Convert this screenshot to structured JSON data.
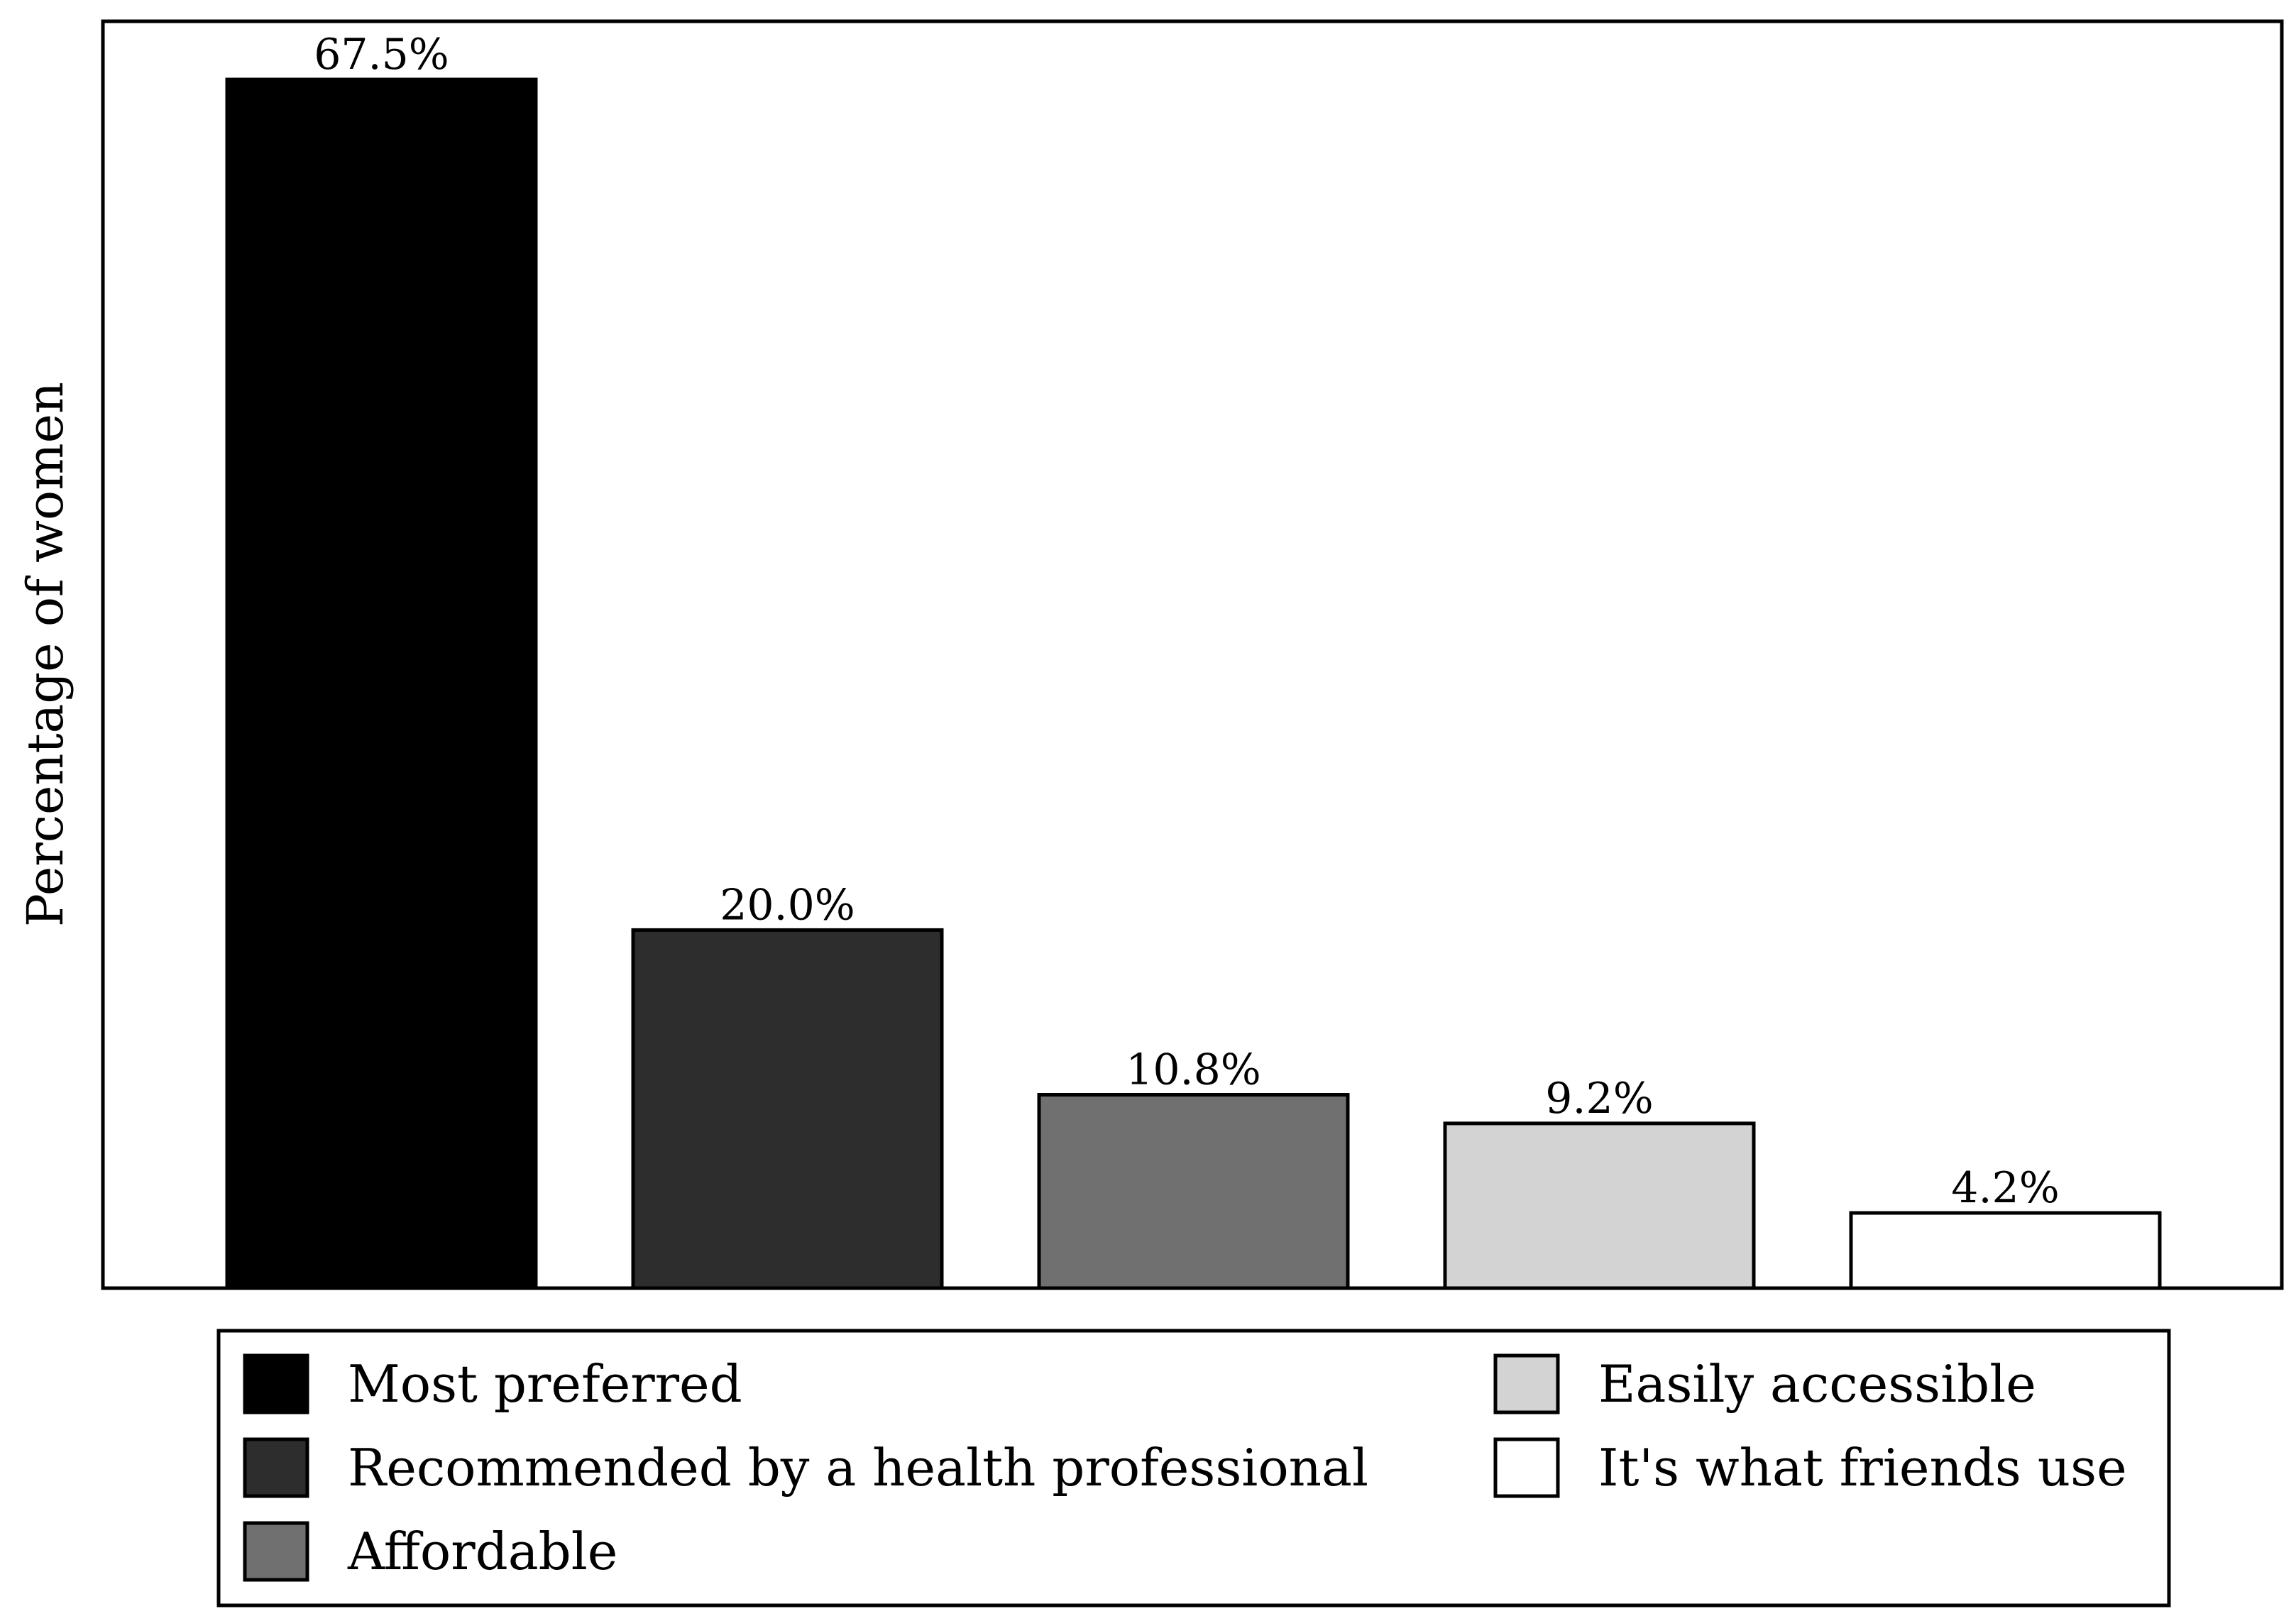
{
  "chart_data": {
    "type": "bar",
    "title": "",
    "xlabel": "",
    "ylabel": "Percentage of women",
    "ylim": [
      0,
      70
    ],
    "grid": false,
    "legend_placement": "bottom",
    "categories": [
      "Most preferred",
      "Recommended by a health professional",
      "Affordable",
      "Easily accessible",
      "It's what friends use"
    ],
    "values": [
      67.5,
      20.0,
      10.8,
      9.2,
      4.2
    ],
    "data_labels": [
      "67.5%",
      "20.0%",
      "10.8%",
      "9.2%",
      "4.2%"
    ],
    "colors": [
      "#000000",
      "#2d2d2d",
      "#707070",
      "#d3d3d3",
      "#ffffff"
    ],
    "legend": [
      {
        "label": "Most preferred",
        "color": "#000000"
      },
      {
        "label": "Recommended by a health professional",
        "color": "#2d2d2d"
      },
      {
        "label": "Affordable",
        "color": "#707070"
      },
      {
        "label": "Easily accessible",
        "color": "#d3d3d3"
      },
      {
        "label": "It's what friends use",
        "color": "#ffffff"
      }
    ]
  }
}
